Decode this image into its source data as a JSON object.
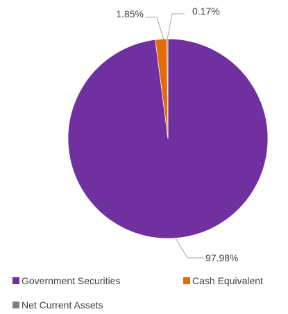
{
  "chart_data": {
    "type": "pie",
    "title": "",
    "slices": [
      {
        "name": "Government Securities",
        "value": 97.98,
        "label": "97.98%",
        "color": "#7030a0"
      },
      {
        "name": "Cash Equivalent",
        "value": 1.85,
        "label": "1.85%",
        "color": "#e36c09"
      },
      {
        "name": "Net Current Assets",
        "value": 0.17,
        "label": "0.17%",
        "color": "#808080"
      }
    ],
    "start_angle_deg": 0,
    "direction": "clockwise",
    "legend_position": "bottom"
  }
}
